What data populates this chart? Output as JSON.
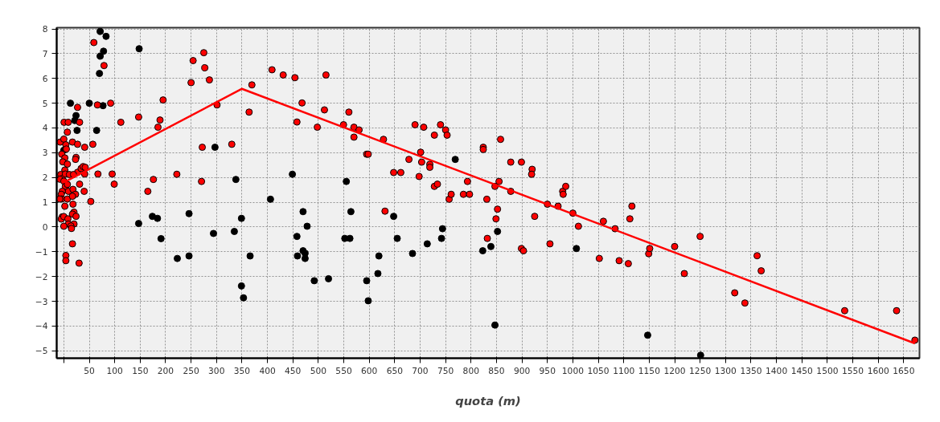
{
  "chart_data": {
    "type": "scatter",
    "xlabel": "quota (m)",
    "xlim": [
      -14,
      1681
    ],
    "ylim": [
      -5.3,
      8.05
    ],
    "xticks": [
      {
        "value": 0,
        "label": null
      },
      50,
      100,
      150,
      200,
      250,
      300,
      350,
      400,
      450,
      500,
      550,
      600,
      650,
      700,
      750,
      800,
      850,
      900,
      950,
      1000,
      1050,
      1100,
      1150,
      1200,
      1250,
      1300,
      1350,
      1400,
      1450,
      1500,
      1550,
      1600,
      1650
    ],
    "yticks": [
      -5,
      -4,
      -3,
      -2,
      -1,
      0,
      1,
      2,
      3,
      4,
      5,
      6,
      7,
      8
    ],
    "grid": true,
    "marker": "circle",
    "series": [
      {
        "color": "#000000",
        "x": [
          71.5,
          83,
          78,
          71.5,
          70,
          13,
          50,
          77,
          24,
          21.5,
          26,
          64.5,
          0,
          147,
          148,
          338,
          297,
          406,
          449,
          174,
          184,
          246,
          191,
          349,
          294,
          335,
          470,
          478,
          458,
          223,
          246,
          366,
          459,
          470,
          474,
          474,
          492,
          349,
          353,
          520,
          555,
          564,
          552,
          562,
          595,
          598,
          619,
          617,
          648,
          655,
          685,
          714,
          742,
          744,
          769,
          823,
          839,
          852,
          847,
          1007,
          1147,
          1251
        ],
        "values": [
          7.9,
          7.7,
          7.1,
          6.9,
          6.2,
          5.0,
          5.0,
          4.9,
          4.5,
          4.3,
          3.9,
          3.9,
          3.1,
          0.14,
          7.2,
          1.92,
          3.22,
          1.12,
          2.13,
          0.43,
          0.35,
          0.54,
          -0.47,
          0.35,
          -0.26,
          -0.18,
          0.62,
          0.03,
          -0.38,
          -1.27,
          -1.17,
          -1.17,
          -1.17,
          -0.96,
          -1.06,
          -1.27,
          -2.17,
          -2.38,
          -2.86,
          -2.09,
          1.84,
          0.62,
          -0.46,
          -0.46,
          -2.17,
          -2.98,
          -1.17,
          -1.88,
          0.43,
          -0.46,
          -1.07,
          -0.68,
          -0.46,
          -0.07,
          2.73,
          -0.96,
          -0.79,
          -0.18,
          -3.96,
          -0.87,
          -4.37,
          -5.18
        ]
      },
      {
        "color": "#ff0000",
        "x": [
          59,
          79,
          66,
          92,
          27,
          0.5,
          8.6,
          31,
          7,
          -7,
          0,
          4,
          17,
          27,
          57,
          41,
          5,
          -4,
          2,
          -2,
          7,
          2,
          24,
          23,
          27,
          34,
          38,
          42,
          -6,
          -3,
          -8,
          3,
          11,
          19,
          41,
          67,
          95,
          99,
          31,
          0,
          3,
          7,
          9,
          -3,
          -5,
          -4,
          -8,
          7,
          18,
          23,
          17,
          40,
          53,
          2,
          18,
          20,
          17,
          24,
          -3,
          -5,
          0,
          8,
          9,
          0,
          20,
          14,
          15,
          17,
          4,
          4,
          30,
          112,
          147,
          165,
          176,
          185,
          189,
          195,
          222,
          250,
          254,
          275,
          277,
          286,
          272,
          270.5,
          301,
          330,
          364,
          369.5,
          409,
          431,
          454,
          468,
          458,
          498,
          515,
          512,
          549.5,
          560,
          570,
          580,
          570,
          595,
          598,
          628,
          631,
          648,
          662,
          678,
          690,
          707,
          701,
          703,
          698,
          719,
          719,
          728,
          728,
          734,
          740,
          750,
          753,
          757,
          761,
          785,
          793,
          797,
          824,
          824,
          831,
          832,
          847,
          855,
          858,
          852,
          849,
          878,
          878,
          899,
          920,
          919,
          925,
          899,
          903,
          950,
          955,
          971,
          980,
          981,
          986,
          1000,
          1011,
          1052,
          1060,
          1083,
          1091,
          1109,
          1112,
          1116,
          1149,
          1151,
          1200,
          1219,
          1250,
          1318,
          1338,
          1362,
          1370,
          1534,
          1636,
          1672
        ],
        "values": [
          7.45,
          6.52,
          4.93,
          5.0,
          4.83,
          4.23,
          4.23,
          4.23,
          3.83,
          3.43,
          3.55,
          3.32,
          3.43,
          3.34,
          3.34,
          3.22,
          3.15,
          2.94,
          2.79,
          2.63,
          2.54,
          2.3,
          2.81,
          2.73,
          2.21,
          2.36,
          2.44,
          2.41,
          2.12,
          1.96,
          1.93,
          2.14,
          2.12,
          2.12,
          2.14,
          2.14,
          2.14,
          1.73,
          1.73,
          1.85,
          1.64,
          1.72,
          1.44,
          1.44,
          1.32,
          1.13,
          1.13,
          1.13,
          1.52,
          1.32,
          1.24,
          1.44,
          1.03,
          0.84,
          0.92,
          0.6,
          0.52,
          0.43,
          0.41,
          0.32,
          0.42,
          0.33,
          0.12,
          0.03,
          0.12,
          0.04,
          -0.06,
          -0.68,
          -1.15,
          -1.36,
          -1.46,
          4.23,
          4.44,
          1.44,
          1.92,
          4.03,
          4.32,
          5.13,
          2.13,
          5.83,
          6.72,
          7.04,
          6.43,
          5.94,
          3.22,
          1.84,
          4.93,
          3.34,
          4.64,
          5.74,
          6.35,
          6.14,
          6.03,
          5.01,
          4.24,
          4.03,
          6.14,
          4.73,
          4.13,
          4.64,
          4.03,
          3.92,
          3.63,
          2.94,
          2.94,
          3.54,
          0.64,
          2.2,
          2.2,
          2.73,
          4.13,
          4.03,
          3.02,
          2.62,
          2.04,
          2.53,
          2.41,
          3.71,
          1.64,
          1.73,
          4.13,
          3.92,
          3.71,
          1.12,
          1.32,
          1.32,
          1.84,
          1.32,
          3.22,
          3.13,
          1.12,
          -0.46,
          1.64,
          1.84,
          3.54,
          0.72,
          0.33,
          2.62,
          1.44,
          2.62,
          2.33,
          2.13,
          0.43,
          -0.87,
          -0.96,
          0.92,
          -0.68,
          0.84,
          1.44,
          1.32,
          1.64,
          0.56,
          0.03,
          -1.27,
          0.23,
          -0.07,
          -1.36,
          -1.48,
          0.33,
          0.84,
          -1.08,
          -0.87,
          -0.79,
          -1.88,
          -0.38,
          -2.66,
          -3.07,
          -1.16,
          -1.77,
          -3.38,
          -3.38,
          -4.57
        ]
      },
      {
        "type": "line",
        "color": "#ff0000",
        "marker": "none",
        "line_style": "solid",
        "x": [
          0,
          350,
          1672
        ],
        "values": [
          1.8,
          5.58,
          -4.7
        ]
      }
    ]
  }
}
